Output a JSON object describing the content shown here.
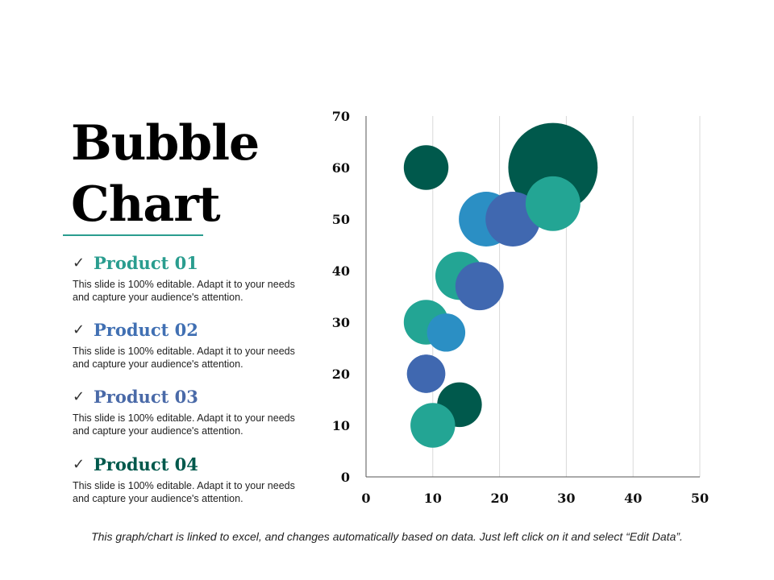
{
  "slide": {
    "title_line1": "Bubble",
    "title_line2": "Chart",
    "check_glyph": "✓",
    "footnote": "This graph/chart is linked to excel, and changes automatically based on data. Just left click on it and select “Edit Data”."
  },
  "products": [
    {
      "label": "Product 01",
      "color": "#2a9d8f",
      "description": "This slide is 100% editable. Adapt it to your needs and capture your audience's attention."
    },
    {
      "label": "Product 02",
      "color": "#4170b3",
      "description": "This slide is 100% editable. Adapt it to your needs and capture your audience's attention."
    },
    {
      "label": "Product 03",
      "color": "#4a6aa8",
      "description": "This slide is 100% editable. Adapt it to your needs and capture your audience's attention."
    },
    {
      "label": "Product 04",
      "color": "#00594c",
      "description": "This slide is 100% editable. Adapt it to your needs and capture your audience's attention."
    }
  ],
  "chart_data": {
    "type": "scatter",
    "subtype": "bubble",
    "title": "",
    "xlabel": "",
    "ylabel": "",
    "xlim": [
      0,
      50
    ],
    "ylim": [
      0,
      70
    ],
    "x_ticks": [
      "0",
      "10",
      "20",
      "30",
      "40",
      "50"
    ],
    "y_ticks": [
      "0",
      "10",
      "20",
      "30",
      "40",
      "50",
      "60",
      "70"
    ],
    "grid": "vertical",
    "colors": {
      "dark_green": "#00594c",
      "teal": "#23a594",
      "sky_blue": "#2b8fc4",
      "royal_blue": "#4068b0"
    },
    "series": [
      {
        "name": "Product 01",
        "color": "#23a594",
        "points": [
          {
            "x": 10,
            "y": 10,
            "size": 3
          },
          {
            "x": 9,
            "y": 30,
            "size": 3
          },
          {
            "x": 14,
            "y": 39,
            "size": 3.5
          },
          {
            "x": 28,
            "y": 53,
            "size": 4.5
          }
        ]
      },
      {
        "name": "Product 02",
        "color": "#2b8fc4",
        "points": [
          {
            "x": 12,
            "y": 28,
            "size": 2.2
          },
          {
            "x": 18,
            "y": 50,
            "size": 4.5
          }
        ]
      },
      {
        "name": "Product 03",
        "color": "#4068b0",
        "points": [
          {
            "x": 9,
            "y": 20,
            "size": 2.2
          },
          {
            "x": 17,
            "y": 37,
            "size": 3.5
          },
          {
            "x": 22,
            "y": 50,
            "size": 4.5
          }
        ]
      },
      {
        "name": "Product 04",
        "color": "#00594c",
        "points": [
          {
            "x": 9,
            "y": 60,
            "size": 3
          },
          {
            "x": 14,
            "y": 14,
            "size": 3
          },
          {
            "x": 28,
            "y": 60,
            "size": 12
          }
        ]
      }
    ],
    "draw_order": [
      [
        3,
        2
      ],
      [
        2,
        0
      ],
      [
        3,
        0
      ],
      [
        1,
        1
      ],
      [
        2,
        2
      ],
      [
        0,
        3
      ],
      [
        0,
        2
      ],
      [
        2,
        1
      ],
      [
        0,
        1
      ],
      [
        1,
        0
      ],
      [
        2,
        0
      ],
      [
        3,
        1
      ],
      [
        0,
        0
      ]
    ]
  }
}
